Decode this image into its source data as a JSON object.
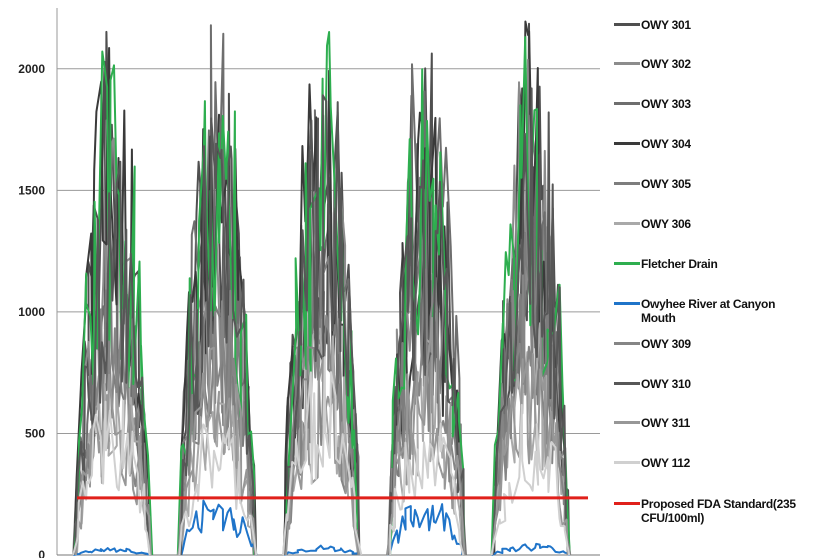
{
  "chart_data": {
    "type": "line",
    "y_ticks": [
      0,
      500,
      1000,
      1500,
      2000
    ],
    "ylim": [
      0,
      2250
    ],
    "x_cycles": 5,
    "grid": true,
    "legend_position": "right",
    "title": "",
    "xlabel": "",
    "ylabel": "",
    "threshold": {
      "name": "Proposed FDA Standard(235 CFU/100ml)",
      "value": 235,
      "color": "#e0201b"
    },
    "series": [
      {
        "name": "OWY 301",
        "color": "#4f4f4f",
        "peaks": [
          2250,
          2250,
          2250,
          2250,
          2250
        ]
      },
      {
        "name": "OWY 302",
        "color": "#8c8c8c",
        "peaks": [
          1900,
          1700,
          2000,
          1800,
          2100
        ]
      },
      {
        "name": "OWY 303",
        "color": "#6e6e6e",
        "peaks": [
          1500,
          2250,
          1900,
          2250,
          1700
        ]
      },
      {
        "name": "OWY 304",
        "color": "#3a3a3a",
        "peaks": [
          2250,
          2100,
          2250,
          1900,
          2250
        ]
      },
      {
        "name": "OWY 305",
        "color": "#7d7d7d",
        "peaks": [
          1200,
          1400,
          1300,
          1600,
          1500
        ]
      },
      {
        "name": "OWY 306",
        "color": "#a9a9a9",
        "peaks": [
          900,
          800,
          1100,
          900,
          1000
        ]
      },
      {
        "name": "Fletcher Drain",
        "color": "#2eae4f",
        "peaks": [
          2250,
          2250,
          2250,
          2250,
          2250
        ]
      },
      {
        "name": "Owyhee River at Canyon Mouth",
        "color": "#1f74c9",
        "peaks": [
          30,
          270,
          40,
          260,
          50
        ]
      },
      {
        "name": "OWY 309",
        "color": "#858585",
        "peaks": [
          1100,
          1300,
          1000,
          1200,
          1400
        ]
      },
      {
        "name": "OWY 310",
        "color": "#575757",
        "peaks": [
          1700,
          1900,
          2250,
          1800,
          2250
        ]
      },
      {
        "name": "OWY 311",
        "color": "#979797",
        "peaks": [
          800,
          950,
          850,
          1000,
          900
        ]
      },
      {
        "name": "OWY 112",
        "color": "#d0d0d0",
        "peaks": [
          700,
          600,
          880,
          650,
          750
        ]
      }
    ]
  }
}
